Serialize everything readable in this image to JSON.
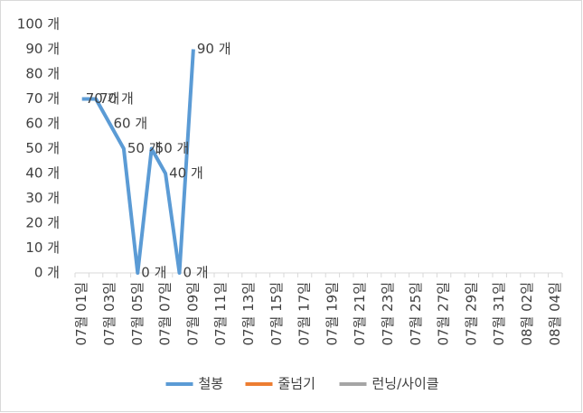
{
  "chart_data": {
    "type": "line",
    "categories": [
      "07월 01일",
      null,
      "07월 03일",
      null,
      "07월 05일",
      null,
      "07월 07일",
      null,
      "07월 09일",
      null,
      "07월 11일",
      null,
      "07월 13일",
      null,
      "07월 15일",
      null,
      "07월 17일",
      null,
      "07월 19일",
      null,
      "07월 21일",
      null,
      "07월 23일",
      null,
      "07월 25일",
      null,
      "07월 27일",
      null,
      "07월 29일",
      null,
      "07월 31일",
      null,
      "08월 02일",
      null,
      "08월 04일"
    ],
    "series": [
      {
        "name": "철봉",
        "color": "#5b9bd5",
        "values": [
          70,
          70,
          60,
          50,
          0,
          50,
          40,
          0,
          90,
          null,
          null,
          null,
          null,
          null,
          null,
          null,
          null,
          null,
          null,
          null,
          null,
          null,
          null,
          null,
          null,
          null,
          null,
          null,
          null,
          null,
          null,
          null,
          null,
          null,
          null
        ],
        "value_labels": [
          "70 개",
          "70 개",
          "60 개",
          "50 개",
          "0 개",
          "50 개",
          "40 개",
          "0 개",
          "90 개",
          null,
          null,
          null,
          null,
          null,
          null,
          null,
          null,
          null,
          null,
          null,
          null,
          null,
          null,
          null,
          null,
          null,
          null,
          null,
          null,
          null,
          null,
          null,
          null,
          null,
          null
        ]
      },
      {
        "name": "줄넘기",
        "color": "#ed7d31",
        "values": [
          null,
          null,
          null,
          null,
          null,
          null,
          null,
          null,
          null,
          null,
          null,
          null,
          null,
          null,
          null,
          null,
          null,
          null,
          null,
          null,
          null,
          null,
          null,
          null,
          null,
          null,
          null,
          null,
          null,
          null,
          null,
          null,
          null,
          null,
          null
        ]
      },
      {
        "name": "런닝/사이클",
        "color": "#a5a5a5",
        "values": [
          null,
          null,
          null,
          null,
          null,
          null,
          null,
          null,
          null,
          null,
          null,
          null,
          null,
          null,
          null,
          null,
          null,
          null,
          null,
          null,
          null,
          null,
          null,
          null,
          null,
          null,
          null,
          null,
          null,
          null,
          null,
          null,
          null,
          null,
          null
        ]
      }
    ],
    "ylim": [
      0,
      100
    ],
    "yticks": [
      {
        "value": 0,
        "label": "0 개"
      },
      {
        "value": 10,
        "label": "10 개"
      },
      {
        "value": 20,
        "label": "20 개"
      },
      {
        "value": 30,
        "label": "30 개"
      },
      {
        "value": 40,
        "label": "40 개"
      },
      {
        "value": 50,
        "label": "50 개"
      },
      {
        "value": 60,
        "label": "60 개"
      },
      {
        "value": 70,
        "label": "70 개"
      },
      {
        "value": 80,
        "label": "80 개"
      },
      {
        "value": 90,
        "label": "90 개"
      },
      {
        "value": 100,
        "label": "100 개"
      }
    ],
    "grid": false,
    "legend": "bottom"
  }
}
